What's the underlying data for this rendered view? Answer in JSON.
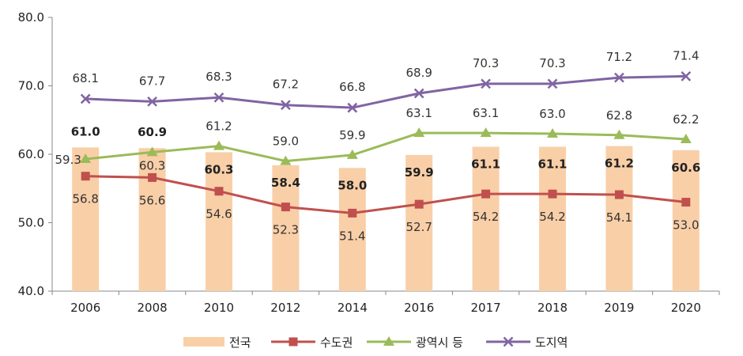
{
  "chart_data": {
    "type": "bar+line",
    "categories": [
      "2006",
      "2008",
      "2010",
      "2012",
      "2014",
      "2016",
      "2017",
      "2018",
      "2019",
      "2020"
    ],
    "ylim": [
      40,
      80
    ],
    "yticks": [
      "40.0",
      "50.0",
      "60.0",
      "70.0",
      "80.0"
    ],
    "series": [
      {
        "name": "전국",
        "kind": "bar",
        "color": "#F9CFA8",
        "values": [
          61.0,
          60.9,
          60.3,
          58.4,
          58.0,
          59.9,
          61.1,
          61.1,
          61.2,
          60.6
        ],
        "labels": [
          "61.0",
          "60.9",
          "60.3",
          "58.4",
          "58.0",
          "59.9",
          "61.1",
          "61.1",
          "61.2",
          "60.6"
        ]
      },
      {
        "name": "수도권",
        "kind": "line",
        "marker": "square",
        "color": "#C0504D",
        "values": [
          56.8,
          56.6,
          54.6,
          52.3,
          51.4,
          52.7,
          54.2,
          54.2,
          54.1,
          53.0
        ],
        "labels": [
          "56.8",
          "56.6",
          "54.6",
          "52.3",
          "51.4",
          "52.7",
          "54.2",
          "54.2",
          "54.1",
          "53.0"
        ]
      },
      {
        "name": "광역시 등",
        "kind": "line",
        "marker": "triangle",
        "color": "#9BBB59",
        "values": [
          59.3,
          60.3,
          61.2,
          59.0,
          59.9,
          63.1,
          63.1,
          63.0,
          62.8,
          62.2
        ],
        "labels": [
          "59.3",
          "60.3",
          "61.2",
          "59.0",
          "59.9",
          "63.1",
          "63.1",
          "63.0",
          "62.8",
          "62.2"
        ]
      },
      {
        "name": "도지역",
        "kind": "line",
        "marker": "x",
        "color": "#8064A2",
        "values": [
          68.1,
          67.7,
          68.3,
          67.2,
          66.8,
          68.9,
          70.3,
          70.3,
          71.2,
          71.4
        ],
        "labels": [
          "68.1",
          "67.7",
          "68.3",
          "67.2",
          "66.8",
          "68.9",
          "70.3",
          "70.3",
          "71.2",
          "71.4"
        ]
      }
    ],
    "legend": [
      "전국",
      "수도권",
      "광역시 등",
      "도지역"
    ],
    "legend_position": "bottom"
  }
}
